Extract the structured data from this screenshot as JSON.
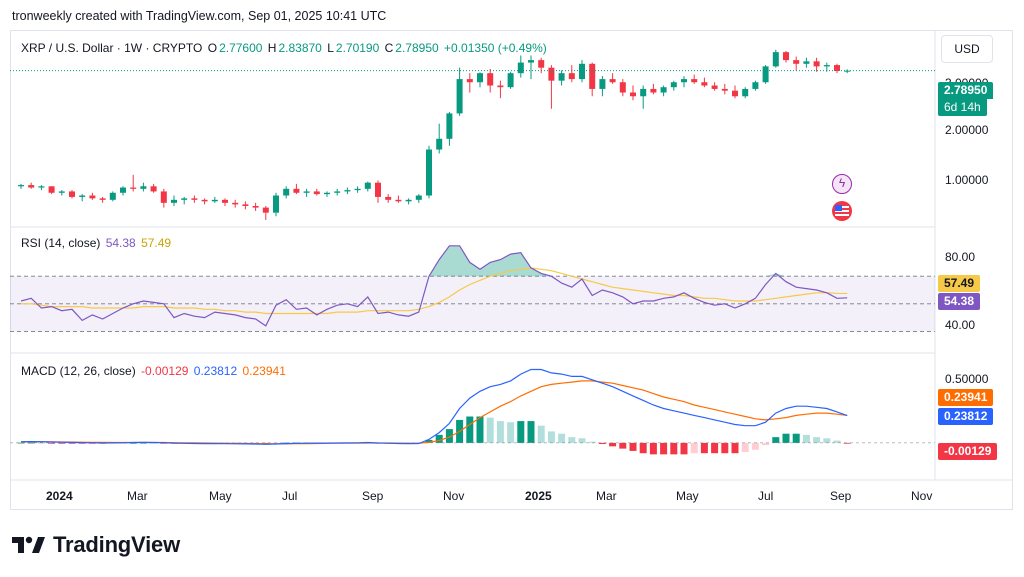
{
  "credit": "tronweekly created with TradingView.com, Sep 01, 2025 10:41 UTC",
  "legend": {
    "symbol": "XRP / U.S. Dollar · 1W · CRYPTO",
    "o_label": "O",
    "o": "2.77600",
    "h_label": "H",
    "h": "2.83870",
    "l_label": "L",
    "l": "2.70190",
    "c_label": "C",
    "c": "2.78950",
    "change": "+0.01350 (+0.49%)"
  },
  "currency": "USD",
  "price_tag": {
    "price": "2.78950",
    "countdown": "6d 14h"
  },
  "price_axis": [
    "3.00000",
    "2.00000",
    "1.00000"
  ],
  "rsi": {
    "title": "RSI (14, close)",
    "rsi_value": "54.38",
    "ma_value": "57.49",
    "axis": [
      "80.00",
      "40.00"
    ]
  },
  "macd": {
    "title": "MACD (12, 26, close)",
    "hist": "-0.00129",
    "macd": "0.23812",
    "signal": "0.23941",
    "axis": [
      "0.50000"
    ]
  },
  "time_axis": [
    "2024",
    "Mar",
    "May",
    "Jul",
    "Sep",
    "Nov",
    "2025",
    "Mar",
    "May",
    "Jul",
    "Sep",
    "Nov"
  ],
  "brand": "TradingView",
  "colors": {
    "up": "#089981",
    "down": "#f23645",
    "rsi": "#7e57c2",
    "rsi_ma": "#f7c948",
    "macd": "#2962ff",
    "signal": "#ff6d00"
  },
  "chart_data": [
    {
      "type": "candlestick",
      "title": "XRP / U.S. Dollar · 1W · CRYPTO",
      "ylim": [
        0.4,
        3.65
      ],
      "candles": [
        [
          0.62,
          0.64,
          0.6,
          0.63
        ],
        [
          0.63,
          0.65,
          0.6,
          0.61
        ],
        [
          0.61,
          0.63,
          0.59,
          0.62
        ],
        [
          0.62,
          0.62,
          0.56,
          0.57
        ],
        [
          0.57,
          0.59,
          0.55,
          0.58
        ],
        [
          0.58,
          0.59,
          0.53,
          0.54
        ],
        [
          0.54,
          0.56,
          0.51,
          0.55
        ],
        [
          0.55,
          0.57,
          0.52,
          0.53
        ],
        [
          0.53,
          0.54,
          0.5,
          0.52
        ],
        [
          0.52,
          0.58,
          0.51,
          0.57
        ],
        [
          0.57,
          0.62,
          0.55,
          0.61
        ],
        [
          0.61,
          0.72,
          0.58,
          0.6
        ],
        [
          0.6,
          0.65,
          0.58,
          0.62
        ],
        [
          0.62,
          0.64,
          0.57,
          0.58
        ],
        [
          0.58,
          0.6,
          0.47,
          0.5
        ],
        [
          0.5,
          0.55,
          0.48,
          0.52
        ],
        [
          0.52,
          0.54,
          0.49,
          0.53
        ],
        [
          0.53,
          0.55,
          0.5,
          0.52
        ],
        [
          0.52,
          0.53,
          0.49,
          0.51
        ],
        [
          0.51,
          0.54,
          0.5,
          0.52
        ],
        [
          0.52,
          0.53,
          0.48,
          0.5
        ],
        [
          0.5,
          0.52,
          0.47,
          0.49
        ],
        [
          0.49,
          0.51,
          0.46,
          0.48
        ],
        [
          0.48,
          0.5,
          0.45,
          0.47
        ],
        [
          0.47,
          0.48,
          0.4,
          0.44
        ],
        [
          0.44,
          0.57,
          0.42,
          0.55
        ],
        [
          0.55,
          0.62,
          0.53,
          0.6
        ],
        [
          0.6,
          0.64,
          0.56,
          0.57
        ],
        [
          0.57,
          0.6,
          0.54,
          0.58
        ],
        [
          0.58,
          0.6,
          0.55,
          0.56
        ],
        [
          0.56,
          0.58,
          0.54,
          0.57
        ],
        [
          0.57,
          0.6,
          0.55,
          0.58
        ],
        [
          0.58,
          0.61,
          0.56,
          0.59
        ],
        [
          0.59,
          0.62,
          0.57,
          0.6
        ],
        [
          0.6,
          0.66,
          0.58,
          0.65
        ],
        [
          0.65,
          0.67,
          0.5,
          0.54
        ],
        [
          0.54,
          0.56,
          0.5,
          0.52
        ],
        [
          0.52,
          0.55,
          0.5,
          0.51
        ],
        [
          0.51,
          0.53,
          0.49,
          0.52
        ],
        [
          0.52,
          0.56,
          0.5,
          0.55
        ],
        [
          0.55,
          1.05,
          0.53,
          1.0
        ],
        [
          1.0,
          1.4,
          0.95,
          1.15
        ],
        [
          1.15,
          1.63,
          1.05,
          1.6
        ],
        [
          1.6,
          2.9,
          1.55,
          2.5
        ],
        [
          2.5,
          2.7,
          2.1,
          2.4
        ],
        [
          2.4,
          2.73,
          2.25,
          2.7
        ],
        [
          2.7,
          2.85,
          2.1,
          2.3
        ],
        [
          2.3,
          2.45,
          1.95,
          2.25
        ],
        [
          2.25,
          2.75,
          2.2,
          2.7
        ],
        [
          2.7,
          3.4,
          2.55,
          3.1
        ],
        [
          3.1,
          3.4,
          2.5,
          3.2
        ],
        [
          3.2,
          3.3,
          2.7,
          2.9
        ],
        [
          2.9,
          3.0,
          1.7,
          2.45
        ],
        [
          2.45,
          2.8,
          2.3,
          2.7
        ],
        [
          2.7,
          3.0,
          2.4,
          2.5
        ],
        [
          2.5,
          3.2,
          2.4,
          3.05
        ],
        [
          3.05,
          3.1,
          2.0,
          2.2
        ],
        [
          2.2,
          2.6,
          2.0,
          2.5
        ],
        [
          2.5,
          2.7,
          2.35,
          2.4
        ],
        [
          2.4,
          2.5,
          2.0,
          2.1
        ],
        [
          2.1,
          2.3,
          1.9,
          2.0
        ],
        [
          2.0,
          2.3,
          1.7,
          2.2
        ],
        [
          2.2,
          2.35,
          2.05,
          2.1
        ],
        [
          2.1,
          2.3,
          2.0,
          2.25
        ],
        [
          2.25,
          2.45,
          2.15,
          2.4
        ],
        [
          2.4,
          2.6,
          2.25,
          2.5
        ],
        [
          2.5,
          2.65,
          2.35,
          2.4
        ],
        [
          2.4,
          2.55,
          2.25,
          2.3
        ],
        [
          2.3,
          2.4,
          2.15,
          2.2
        ],
        [
          2.2,
          2.35,
          2.05,
          2.15
        ],
        [
          2.15,
          2.3,
          1.95,
          2.0
        ],
        [
          2.0,
          2.25,
          1.95,
          2.2
        ],
        [
          2.2,
          2.45,
          2.15,
          2.4
        ],
        [
          2.4,
          3.0,
          2.35,
          2.95
        ],
        [
          2.95,
          3.66,
          2.9,
          3.55
        ],
        [
          3.55,
          3.6,
          3.1,
          3.2
        ],
        [
          3.2,
          3.35,
          2.8,
          3.05
        ],
        [
          3.05,
          3.3,
          2.9,
          3.15
        ],
        [
          3.15,
          3.3,
          2.75,
          2.95
        ],
        [
          2.95,
          3.1,
          2.75,
          3.0
        ],
        [
          3.0,
          3.05,
          2.7,
          2.78
        ],
        [
          2.776,
          2.8387,
          2.7019,
          2.7895
        ]
      ]
    },
    {
      "type": "line",
      "title": "RSI (14, close)",
      "ylim": [
        18,
        102
      ],
      "bands": [
        30,
        70
      ],
      "series": [
        {
          "name": "RSI",
          "values": [
            52,
            54,
            47,
            48,
            45,
            46,
            38,
            42,
            39,
            43,
            47,
            50,
            52,
            51,
            50,
            40,
            43,
            41,
            40,
            44,
            43,
            42,
            40,
            39,
            34,
            49,
            53,
            46,
            47,
            42,
            46,
            49,
            50,
            48,
            55,
            43,
            44,
            42,
            41,
            44,
            70,
            82,
            92,
            92,
            80,
            75,
            80,
            82,
            86,
            87,
            76,
            72,
            70,
            65,
            62,
            68,
            56,
            60,
            58,
            55,
            50,
            52,
            52,
            54,
            55,
            58,
            54,
            51,
            49,
            50,
            47,
            50,
            54,
            64,
            72,
            66,
            62,
            61,
            60,
            58,
            54,
            54.38
          ]
        },
        {
          "name": "MA",
          "values": [
            50,
            50,
            49,
            48,
            48,
            48,
            48,
            47,
            47,
            47,
            47,
            47,
            48,
            48,
            48,
            47,
            47,
            47,
            46,
            46,
            45,
            45,
            44,
            44,
            43,
            43,
            43,
            43,
            43,
            43,
            43,
            44,
            44,
            44,
            45,
            45,
            45,
            45,
            45,
            46,
            48,
            51,
            55,
            60,
            64,
            67,
            70,
            72,
            74,
            75,
            76,
            75,
            74,
            72,
            70,
            68,
            66,
            64,
            62,
            61,
            60,
            59,
            58,
            57,
            56,
            56,
            55,
            54,
            54,
            53,
            52,
            52,
            52,
            53,
            54,
            55,
            56,
            57,
            58,
            58,
            57.6,
            57.49
          ]
        }
      ]
    },
    {
      "type": "line",
      "title": "MACD (12, 26, close)",
      "ylim": [
        -0.28,
        0.74
      ],
      "series": [
        {
          "name": "MACD",
          "values": [
            0.01,
            0.011,
            0.01,
            0.008,
            0.006,
            0.004,
            0.002,
            0.001,
            -0.001,
            0.0,
            0.001,
            0.003,
            0.004,
            0.003,
            0.002,
            -0.002,
            -0.004,
            -0.005,
            -0.006,
            -0.006,
            -0.007,
            -0.008,
            -0.009,
            -0.01,
            -0.012,
            -0.01,
            -0.006,
            -0.004,
            -0.003,
            -0.002,
            -0.002,
            -0.001,
            0.0,
            0.001,
            0.003,
            -0.001,
            -0.003,
            -0.005,
            -0.006,
            -0.005,
            0.03,
            0.09,
            0.17,
            0.3,
            0.39,
            0.45,
            0.49,
            0.51,
            0.54,
            0.6,
            0.64,
            0.64,
            0.61,
            0.6,
            0.58,
            0.58,
            0.55,
            0.52,
            0.49,
            0.45,
            0.41,
            0.37,
            0.33,
            0.3,
            0.28,
            0.26,
            0.24,
            0.22,
            0.2,
            0.18,
            0.16,
            0.15,
            0.15,
            0.18,
            0.26,
            0.3,
            0.32,
            0.32,
            0.31,
            0.3,
            0.27,
            0.23812
          ]
        },
        {
          "name": "Signal",
          "values": [
            0.008,
            0.009,
            0.009,
            0.009,
            0.008,
            0.007,
            0.006,
            0.005,
            0.004,
            0.003,
            0.003,
            0.003,
            0.003,
            0.003,
            0.003,
            0.002,
            0.001,
            0.0,
            -0.001,
            -0.002,
            -0.003,
            -0.004,
            -0.005,
            -0.006,
            -0.007,
            -0.008,
            -0.008,
            -0.007,
            -0.006,
            -0.005,
            -0.004,
            -0.003,
            -0.003,
            -0.002,
            -0.001,
            -0.001,
            -0.001,
            -0.002,
            -0.003,
            -0.003,
            0.004,
            0.02,
            0.05,
            0.1,
            0.16,
            0.22,
            0.27,
            0.32,
            0.36,
            0.41,
            0.45,
            0.49,
            0.51,
            0.52,
            0.53,
            0.54,
            0.54,
            0.53,
            0.52,
            0.5,
            0.48,
            0.46,
            0.43,
            0.4,
            0.38,
            0.36,
            0.33,
            0.31,
            0.29,
            0.27,
            0.25,
            0.23,
            0.21,
            0.2,
            0.21,
            0.22,
            0.24,
            0.25,
            0.26,
            0.26,
            0.25,
            0.23941
          ]
        },
        {
          "name": "Histogram",
          "values": [
            0.002,
            0.002,
            0.001,
            -0.001,
            -0.002,
            -0.003,
            -0.004,
            -0.004,
            -0.005,
            -0.003,
            -0.002,
            0.0,
            0.001,
            0.0,
            -0.001,
            -0.004,
            -0.005,
            -0.005,
            -0.005,
            -0.004,
            -0.004,
            -0.004,
            -0.004,
            -0.004,
            -0.005,
            -0.002,
            0.002,
            0.003,
            0.003,
            0.003,
            0.002,
            0.002,
            0.003,
            0.003,
            0.004,
            0.0,
            -0.002,
            -0.003,
            -0.003,
            -0.002,
            0.026,
            0.07,
            0.12,
            0.2,
            0.23,
            0.23,
            0.22,
            0.19,
            0.18,
            0.19,
            0.19,
            0.15,
            0.1,
            0.08,
            0.05,
            0.04,
            0.01,
            -0.01,
            -0.03,
            -0.05,
            -0.07,
            -0.09,
            -0.1,
            -0.1,
            -0.1,
            -0.1,
            -0.09,
            -0.09,
            -0.09,
            -0.09,
            -0.09,
            -0.08,
            -0.06,
            -0.02,
            0.05,
            0.08,
            0.08,
            0.07,
            0.05,
            0.04,
            0.02,
            -0.00129
          ]
        }
      ]
    }
  ]
}
